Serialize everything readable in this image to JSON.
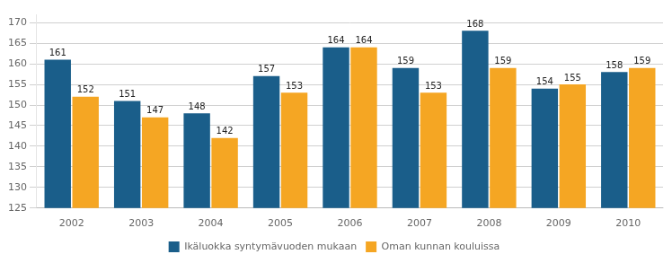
{
  "chart_data": {
    "type": "bar",
    "categories": [
      "2002",
      "2003",
      "2004",
      "2005",
      "2006",
      "2007",
      "2008",
      "2009",
      "2010"
    ],
    "series": [
      {
        "name": "Ikäluokka syntymävuoden mukaan",
        "color": "#1a5e8a",
        "values": [
          161,
          151,
          148,
          157,
          164,
          159,
          168,
          154,
          158
        ]
      },
      {
        "name": "Oman kunnan kouluissa",
        "color": "#f5a623",
        "values": [
          152,
          147,
          142,
          153,
          164,
          153,
          159,
          155,
          159
        ]
      }
    ],
    "ylim": [
      125,
      172
    ],
    "yticks": [
      125,
      130,
      135,
      140,
      145,
      150,
      155,
      160,
      165,
      170
    ],
    "grid": true,
    "data_labels": true,
    "legend": "bottom"
  }
}
